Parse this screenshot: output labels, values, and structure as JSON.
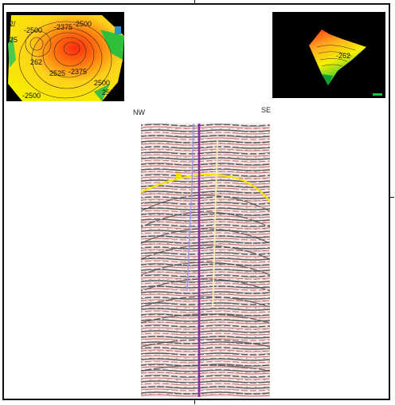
{
  "section": {
    "left_label": "NW",
    "right_label": "SE"
  },
  "map2d": {
    "contours": [
      "-2500",
      "-2375",
      "-2500",
      "262",
      "-2375",
      "2500",
      "2500",
      "2525",
      "-2500",
      "2/",
      "25"
    ]
  },
  "map3d": {
    "contour_label": "-262"
  },
  "colors": {
    "horizon": "#f2e600",
    "well_main": "#8a2aa8",
    "well_secondary": "#9a9ae8",
    "well_tertiary": "#f3efb0",
    "map_high": "#ff2a10",
    "map_low": "#f4f000",
    "border": "#111111"
  }
}
